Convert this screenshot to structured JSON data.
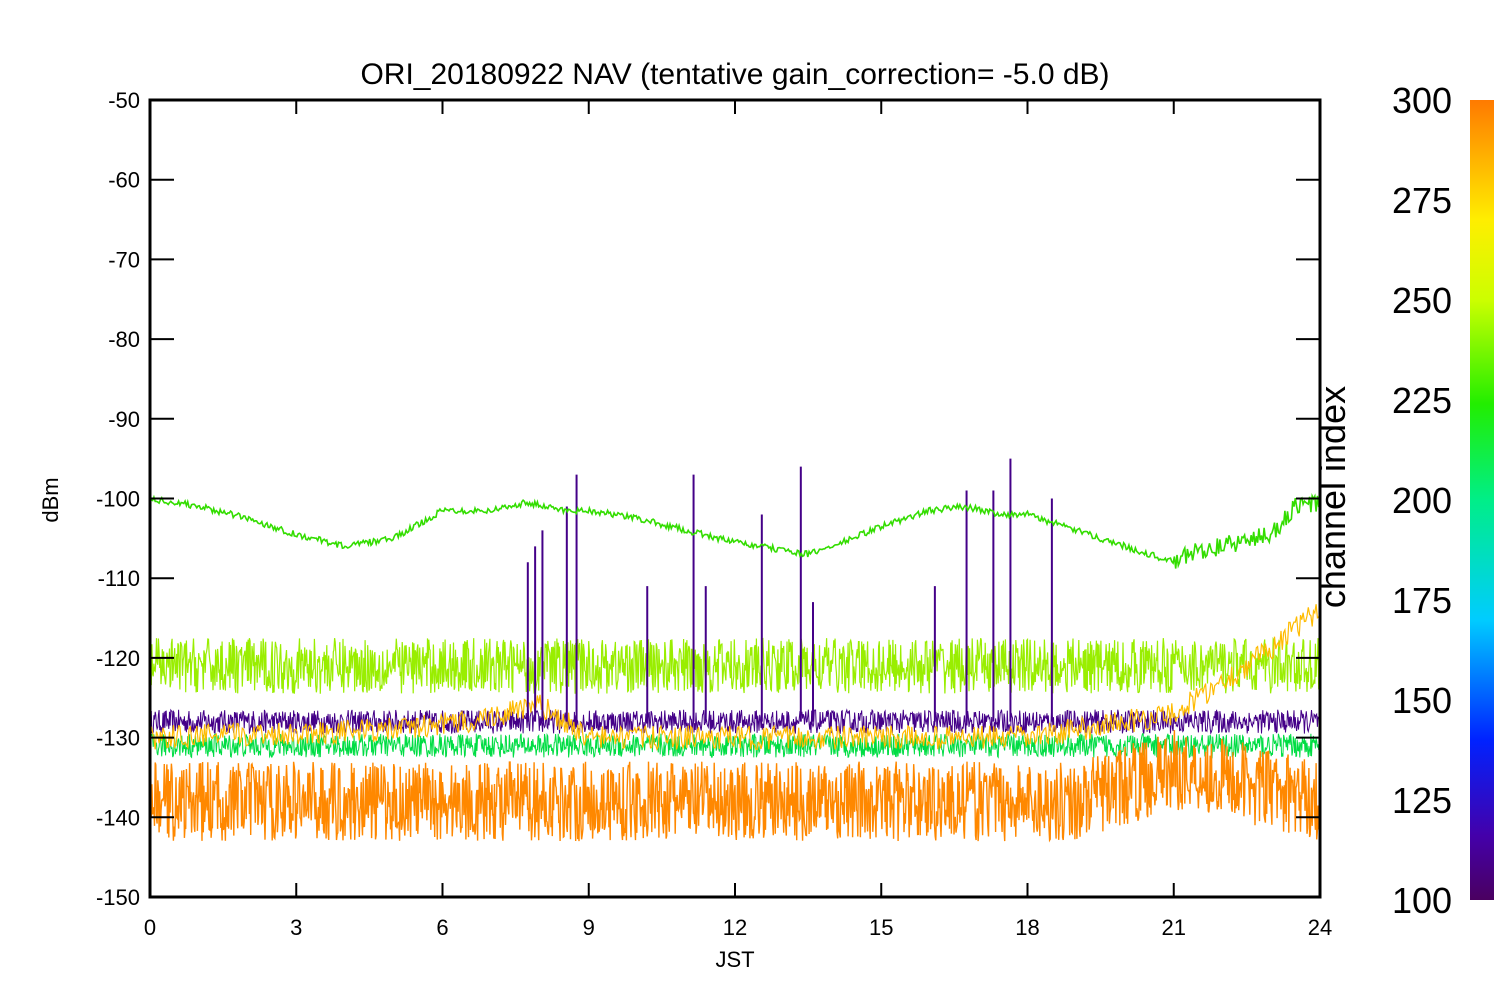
{
  "chart_data": {
    "type": "line",
    "title": "ORI_20180922 NAV (tentative gain_correction= -5.0 dB)",
    "xlabel": "JST",
    "ylabel": "dBm",
    "xlim": [
      0,
      24
    ],
    "ylim": [
      -150,
      -50
    ],
    "x_ticks": [
      "0",
      "3",
      "6",
      "9",
      "12",
      "15",
      "18",
      "21",
      "24"
    ],
    "y_ticks": [
      "-50",
      "-60",
      "-70",
      "-80",
      "-90",
      "-100",
      "-110",
      "-120",
      "-130",
      "-140",
      "-150"
    ],
    "colorbar": {
      "label": "channel index",
      "range": [
        100,
        300
      ],
      "ticks": [
        "100",
        "125",
        "150",
        "175",
        "200",
        "225",
        "250",
        "275",
        "300"
      ]
    },
    "series": [
      {
        "channel": 245,
        "color": "#33dd00",
        "x": [
          0,
          1,
          2,
          3,
          4,
          5,
          6,
          7,
          7.7,
          8.5,
          9,
          10,
          11,
          12,
          13,
          13.5,
          14,
          15,
          16,
          16.7,
          17.5,
          18,
          19,
          20,
          21,
          21.5,
          22,
          23,
          23.5,
          24
        ],
        "y": [
          -100,
          -101,
          -102.5,
          -104.5,
          -106,
          -105,
          -101.5,
          -101.5,
          -100.5,
          -101.5,
          -101.5,
          -102.5,
          -104,
          -105.5,
          -106.5,
          -107,
          -106,
          -103.5,
          -101.5,
          -101,
          -102,
          -102,
          -104,
          -106,
          -108,
          -106.5,
          -106,
          -104.5,
          -101,
          -100.5
        ]
      },
      {
        "channel": 260,
        "color": "#99ee00",
        "band_center": -121,
        "band_halfwidth": 3.5
      },
      {
        "channel": 290,
        "color": "#ff8800",
        "band_center": -138,
        "band_halfwidth": 5,
        "note_x": [
          0,
          19,
          21,
          22,
          24
        ],
        "note_y": [
          -138,
          -138,
          -134,
          -135,
          -138
        ]
      },
      {
        "channel": 280,
        "color": "#ffbb00",
        "x": [
          0,
          5,
          6.5,
          8,
          9,
          18,
          21,
          22.5,
          24
        ],
        "y": [
          -130,
          -129,
          -128,
          -126,
          -130,
          -130,
          -127,
          -121,
          -114
        ]
      },
      {
        "channel": 110,
        "color": "#440088",
        "band_center": -128,
        "band_halfwidth": 1.5
      },
      {
        "channel": 220,
        "color": "#00dd44",
        "band_center": -131,
        "band_halfwidth": 1.5
      }
    ],
    "spikes": [
      {
        "x": 7.75,
        "y": -108
      },
      {
        "x": 7.9,
        "y": -106
      },
      {
        "x": 8.05,
        "y": -104
      },
      {
        "x": 8.55,
        "y": -101
      },
      {
        "x": 8.75,
        "y": -97
      },
      {
        "x": 10.2,
        "y": -111
      },
      {
        "x": 11.15,
        "y": -97
      },
      {
        "x": 11.4,
        "y": -111
      },
      {
        "x": 12.55,
        "y": -102
      },
      {
        "x": 13.35,
        "y": -96
      },
      {
        "x": 13.6,
        "y": -113
      },
      {
        "x": 16.1,
        "y": -111
      },
      {
        "x": 16.75,
        "y": -99
      },
      {
        "x": 17.3,
        "y": -99
      },
      {
        "x": 17.65,
        "y": -95
      },
      {
        "x": 18.5,
        "y": -100
      }
    ]
  }
}
